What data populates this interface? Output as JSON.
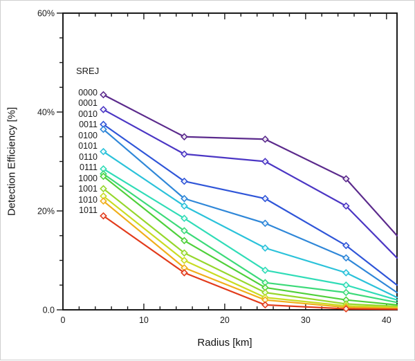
{
  "chart": {
    "background": "#ffffff",
    "frame_color": "#cfcfcf",
    "axis_color": "#1a1a1a",
    "text_color": "#1a1a1a"
  },
  "chart_data": {
    "type": "line",
    "title": "",
    "xlabel": "Radius [km]",
    "ylabel": "Detection Efficiency [%]",
    "xlim": [
      0,
      40
    ],
    "ylim": [
      0,
      60
    ],
    "grid": false,
    "legend": {
      "title": "SREJ",
      "position": "inside-top-left"
    },
    "marker": "open-diamond",
    "x": [
      5,
      15,
      25,
      35,
      41.3
    ],
    "marker_x": [
      5,
      15,
      25,
      35
    ],
    "x_major_ticks": [
      0,
      10,
      20,
      30,
      40
    ],
    "x_tick_labels": [
      "0",
      "10",
      "20",
      "30",
      "40"
    ],
    "x_minor_step": 2,
    "y_major_ticks": [
      0,
      20,
      40,
      60
    ],
    "y_tick_labels": [
      "0.0",
      "20%",
      "40%",
      "60%"
    ],
    "y_minor_step": 5,
    "series": [
      {
        "name": "0000",
        "color": "#5b2a8c",
        "values": [
          43.5,
          35.0,
          34.5,
          26.5,
          15.0
        ]
      },
      {
        "name": "0001",
        "color": "#4b36c4",
        "values": [
          40.5,
          31.5,
          30.0,
          21.0,
          10.5
        ]
      },
      {
        "name": "0010",
        "color": "#2f55d8",
        "values": [
          37.5,
          26.0,
          22.5,
          13.0,
          5.0
        ]
      },
      {
        "name": "0011",
        "color": "#2f87d8",
        "values": [
          36.5,
          22.5,
          17.5,
          10.5,
          3.5
        ]
      },
      {
        "name": "0100",
        "color": "#2bc2da",
        "values": [
          32.0,
          21.0,
          12.5,
          7.5,
          2.5
        ]
      },
      {
        "name": "0101",
        "color": "#30dcb7",
        "values": [
          28.5,
          18.5,
          8.0,
          5.0,
          2.0
        ]
      },
      {
        "name": "0110",
        "color": "#3cda79",
        "values": [
          27.5,
          16.0,
          5.5,
          3.5,
          1.5
        ]
      },
      {
        "name": "0111",
        "color": "#4fd03a",
        "values": [
          27.0,
          14.0,
          4.5,
          2.0,
          1.0
        ]
      },
      {
        "name": "1000",
        "color": "#96d72c",
        "values": [
          24.5,
          11.5,
          3.5,
          1.2,
          0.7
        ]
      },
      {
        "name": "1001",
        "color": "#c9dc22",
        "values": [
          23.0,
          10.0,
          2.5,
          0.8,
          0.5
        ]
      },
      {
        "name": "1010",
        "color": "#f0ae1a",
        "values": [
          22.0,
          8.5,
          2.0,
          0.5,
          0.3
        ]
      },
      {
        "name": "1011",
        "color": "#e23b1b",
        "values": [
          19.0,
          7.5,
          1.0,
          0.2,
          0.1
        ]
      }
    ]
  }
}
